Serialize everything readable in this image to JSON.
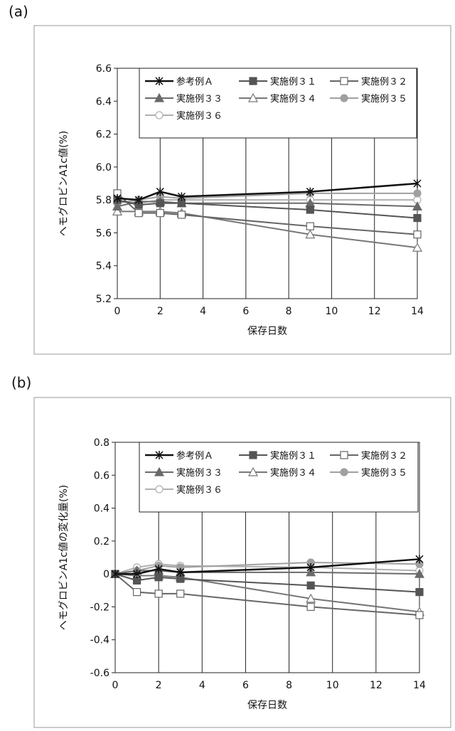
{
  "panels": [
    {
      "label": "(a)",
      "chart_data": {
        "type": "line",
        "xlabel": "保存日数",
        "ylabel": "ヘモグロビンA1c値(%)",
        "xlim": [
          0,
          14
        ],
        "ylim": [
          5.2,
          6.6
        ],
        "xticks": [
          "0",
          "2",
          "4",
          "6",
          "8",
          "10",
          "12",
          "14"
        ],
        "yticks": [
          "5.2",
          "5.4",
          "5.6",
          "5.8",
          "6.0",
          "6.2",
          "6.4",
          "6.6"
        ],
        "grid": "vertical",
        "legend_position": "top-right",
        "x": [
          0,
          1,
          2,
          3,
          9,
          14
        ],
        "series": [
          {
            "name": "参考例Ａ",
            "color": "#111111",
            "marker": "star",
            "values": [
              5.81,
              5.8,
              5.85,
              5.82,
              5.85,
              5.9
            ]
          },
          {
            "name": "実施例３１",
            "color": "#555555",
            "marker": "square-filled",
            "values": [
              5.8,
              5.77,
              5.78,
              5.78,
              5.74,
              5.69
            ]
          },
          {
            "name": "実施例３２",
            "color": "#666666",
            "marker": "square-open",
            "values": [
              5.84,
              5.72,
              5.72,
              5.71,
              5.64,
              5.59
            ]
          },
          {
            "name": "実施例３３",
            "color": "#6a6a6a",
            "marker": "triangle-filled",
            "values": [
              5.76,
              5.79,
              5.79,
              5.78,
              5.78,
              5.76
            ]
          },
          {
            "name": "実施例３４",
            "color": "#777777",
            "marker": "triangle-open",
            "values": [
              5.73,
              5.73,
              5.73,
              5.72,
              5.59,
              5.51
            ]
          },
          {
            "name": "実施例３５",
            "color": "#a0a0a0",
            "marker": "circle-filled",
            "values": [
              5.78,
              5.8,
              5.82,
              5.81,
              5.84,
              5.84
            ]
          },
          {
            "name": "実施例３６",
            "color": "#b0b0b0",
            "marker": "circle-open",
            "values": [
              5.79,
              5.78,
              5.8,
              5.8,
              5.8,
              5.8
            ]
          }
        ]
      }
    },
    {
      "label": "(b)",
      "chart_data": {
        "type": "line",
        "xlabel": "保存日数",
        "ylabel": "ヘモグロビンA1c値の変化量(%)",
        "xlim": [
          0,
          14
        ],
        "ylim": [
          -0.6,
          0.8
        ],
        "xticks": [
          "0",
          "2",
          "4",
          "6",
          "8",
          "10",
          "12",
          "14"
        ],
        "yticks": [
          "-0.6",
          "-0.4",
          "-0.2",
          "0",
          "0.2",
          "0.4",
          "0.6",
          "0.8"
        ],
        "grid": "vertical",
        "legend_position": "top-right",
        "x": [
          0,
          1,
          2,
          3,
          9,
          14
        ],
        "series": [
          {
            "name": "参考例Ａ",
            "color": "#111111",
            "marker": "star",
            "values": [
              0,
              0.0,
              0.03,
              0.01,
              0.04,
              0.09
            ]
          },
          {
            "name": "実施例３１",
            "color": "#555555",
            "marker": "square-filled",
            "values": [
              0,
              -0.04,
              -0.02,
              -0.03,
              -0.07,
              -0.11
            ]
          },
          {
            "name": "実施例３２",
            "color": "#666666",
            "marker": "square-open",
            "values": [
              0,
              -0.11,
              -0.12,
              -0.12,
              -0.2,
              -0.25
            ]
          },
          {
            "name": "実施例３３",
            "color": "#6a6a6a",
            "marker": "triangle-filled",
            "values": [
              0,
              0.02,
              0.02,
              0.01,
              0.01,
              0.0
            ]
          },
          {
            "name": "実施例３４",
            "color": "#777777",
            "marker": "triangle-open",
            "values": [
              0,
              -0.01,
              -0.01,
              -0.02,
              -0.15,
              -0.23
            ]
          },
          {
            "name": "実施例３５",
            "color": "#a0a0a0",
            "marker": "circle-filled",
            "values": [
              0,
              0.02,
              0.05,
              0.04,
              0.07,
              0.06
            ]
          },
          {
            "name": "実施例３６",
            "color": "#b0b0b0",
            "marker": "circle-open",
            "values": [
              0,
              0.04,
              0.06,
              0.05,
              0.04,
              0.02
            ]
          }
        ]
      }
    }
  ]
}
